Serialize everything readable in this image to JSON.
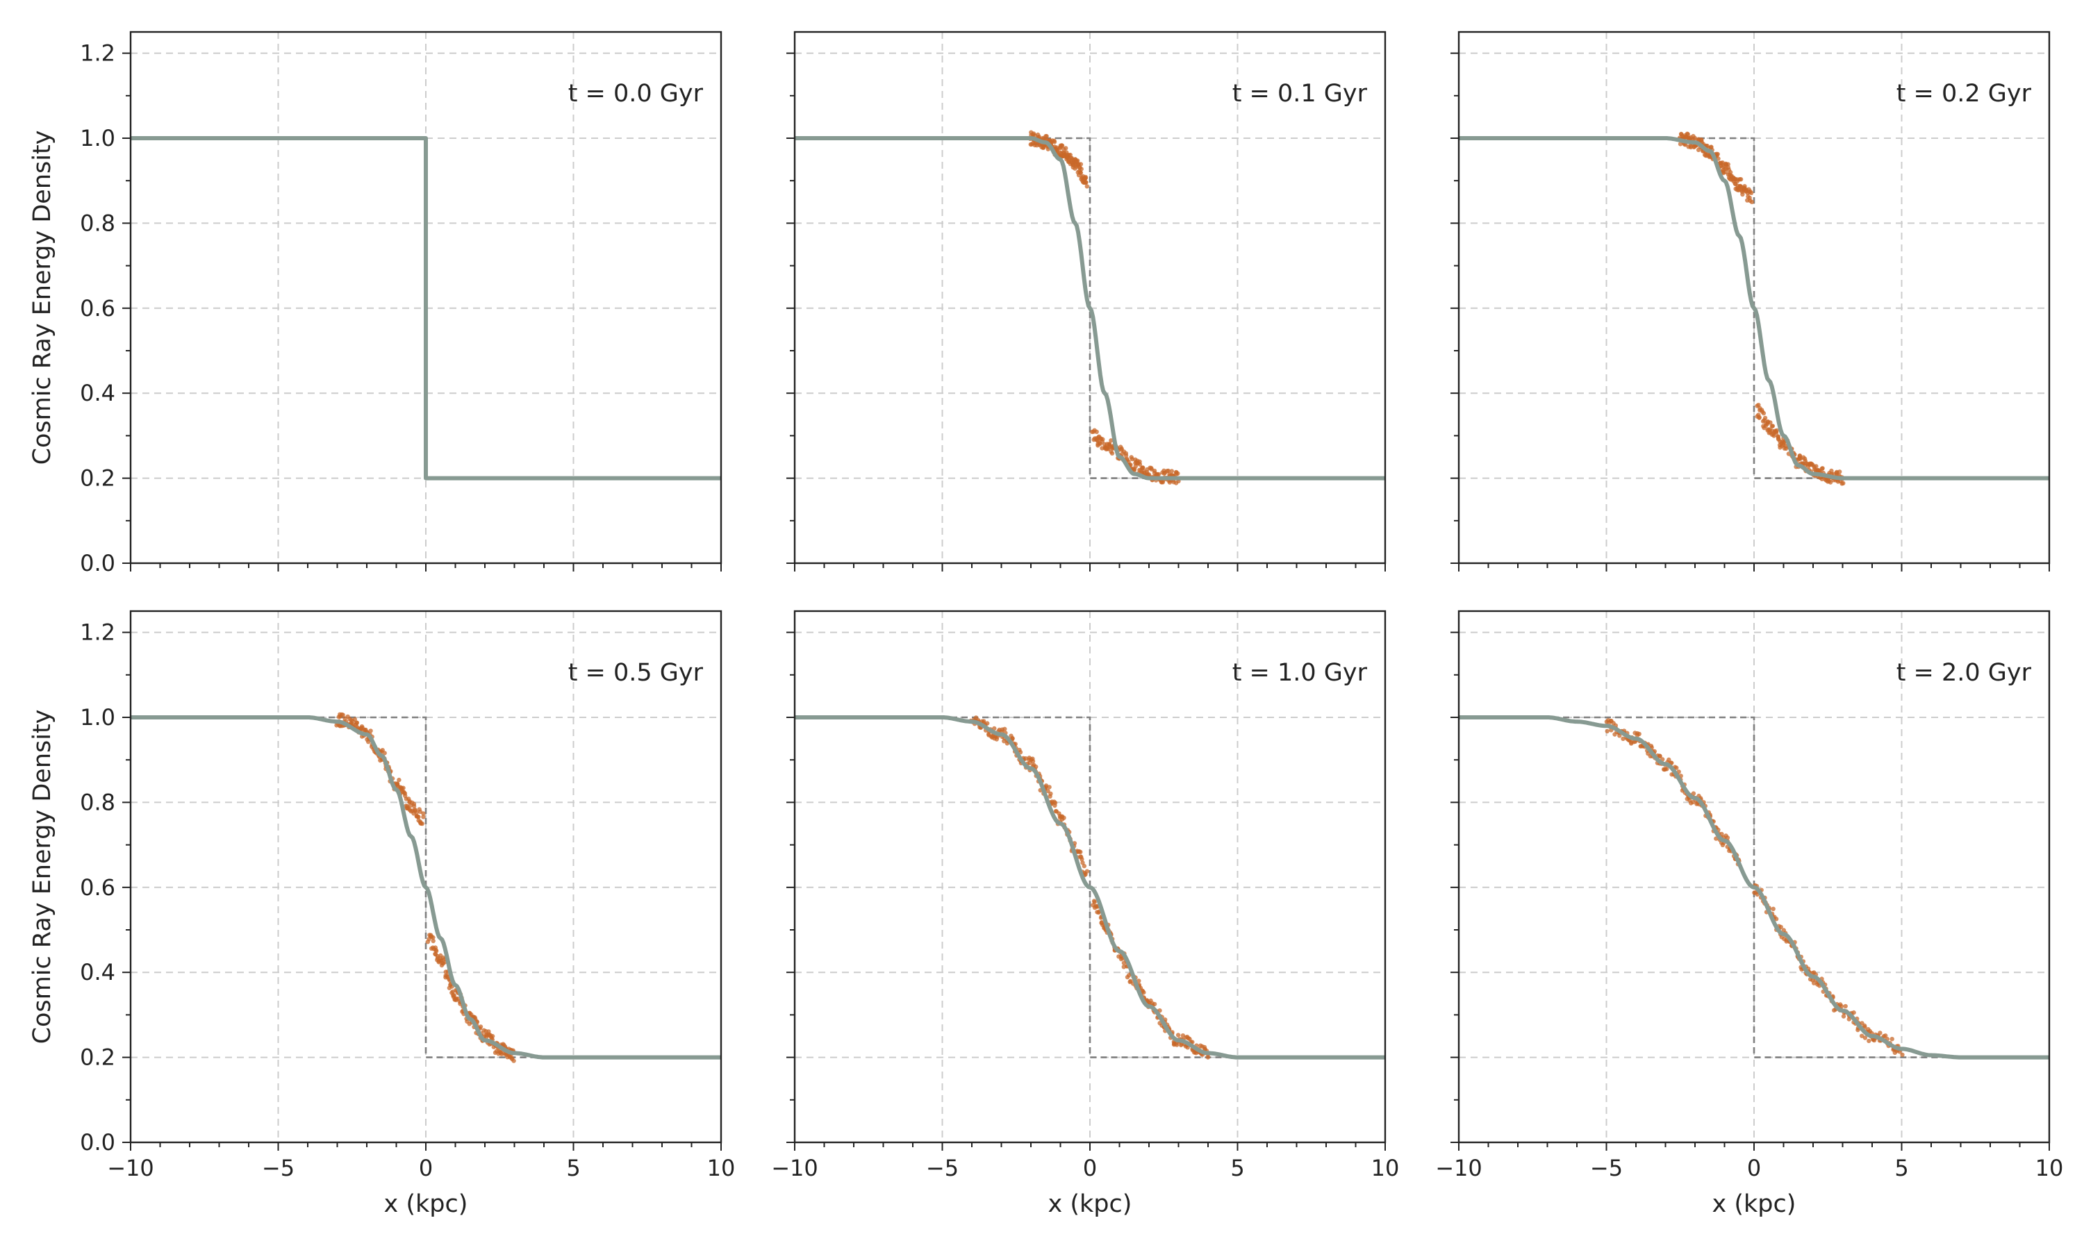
{
  "figure": {
    "x_axis_label": "x (kpc)",
    "y_axis_label": "Cosmic Ray Energy Density",
    "x_ticks": [
      -10,
      -5,
      0,
      5,
      10
    ],
    "x_tick_labels": [
      "−10",
      "−5",
      "0",
      "5",
      "10"
    ],
    "y_ticks": [
      0.0,
      0.2,
      0.4,
      0.6,
      0.8,
      1.0,
      1.2
    ],
    "y_tick_labels": [
      "0.0",
      "0.2",
      "0.4",
      "0.6",
      "0.8",
      "1.0",
      "1.2"
    ]
  },
  "colors": {
    "analytic": "#879A92",
    "initial": "#7f7f7f",
    "particles": "#C8682A",
    "grid": "#cccccc",
    "axes": "#222222"
  },
  "chart_data": [
    {
      "type": "line",
      "label": "t = 0.0 Gyr",
      "t_gyr": 0.0,
      "xlim": [
        -10,
        10
      ],
      "ylim": [
        0,
        1.25
      ],
      "grid": true,
      "series": [
        {
          "kind": "analytic",
          "x": [
            -10,
            0,
            0,
            10
          ],
          "y": [
            1.0,
            1.0,
            0.2,
            0.2
          ]
        }
      ]
    },
    {
      "type": "line",
      "label": "t = 0.1 Gyr",
      "t_gyr": 0.1,
      "xlim": [
        -10,
        10
      ],
      "ylim": [
        0,
        1.25
      ],
      "grid": true,
      "series": [
        {
          "kind": "initial",
          "x": [
            -10,
            0,
            0,
            10
          ],
          "y": [
            1.0,
            1.0,
            0.2,
            0.2
          ]
        },
        {
          "kind": "analytic",
          "x": [
            -10,
            -2,
            -1.5,
            -1,
            -0.5,
            0,
            0.5,
            1,
            1.5,
            2,
            3,
            10
          ],
          "y": [
            1.0,
            1.0,
            0.99,
            0.95,
            0.8,
            0.6,
            0.4,
            0.25,
            0.21,
            0.2,
            0.2,
            0.2
          ]
        },
        {
          "kind": "particles",
          "x": [
            -2,
            -1.5,
            -1,
            -0.5,
            -0.1,
            0.1,
            0.5,
            1,
            1.5,
            2,
            2.5,
            3
          ],
          "y": [
            1.0,
            0.99,
            0.97,
            0.94,
            0.9,
            0.3,
            0.28,
            0.26,
            0.23,
            0.21,
            0.205,
            0.2
          ]
        }
      ]
    },
    {
      "type": "line",
      "label": "t = 0.2 Gyr",
      "t_gyr": 0.2,
      "xlim": [
        -10,
        10
      ],
      "ylim": [
        0,
        1.25
      ],
      "grid": true,
      "series": [
        {
          "kind": "initial",
          "x": [
            -10,
            0,
            0,
            10
          ],
          "y": [
            1.0,
            1.0,
            0.2,
            0.2
          ]
        },
        {
          "kind": "analytic",
          "x": [
            -10,
            -3,
            -2,
            -1.5,
            -1,
            -0.5,
            0,
            0.5,
            1,
            1.5,
            2,
            3,
            10
          ],
          "y": [
            1.0,
            1.0,
            0.99,
            0.97,
            0.9,
            0.77,
            0.6,
            0.43,
            0.3,
            0.23,
            0.21,
            0.2,
            0.2
          ]
        },
        {
          "kind": "particles",
          "x": [
            -2.5,
            -2,
            -1.5,
            -1,
            -0.5,
            -0.1,
            0.1,
            0.5,
            1,
            1.5,
            2,
            2.5,
            3
          ],
          "y": [
            1.0,
            0.99,
            0.97,
            0.93,
            0.89,
            0.86,
            0.36,
            0.32,
            0.28,
            0.24,
            0.22,
            0.205,
            0.2
          ]
        }
      ]
    },
    {
      "type": "line",
      "label": "t = 0.5 Gyr",
      "t_gyr": 0.5,
      "xlim": [
        -10,
        10
      ],
      "ylim": [
        0,
        1.25
      ],
      "grid": true,
      "series": [
        {
          "kind": "initial",
          "x": [
            -10,
            0,
            0,
            10
          ],
          "y": [
            1.0,
            1.0,
            0.2,
            0.2
          ]
        },
        {
          "kind": "analytic",
          "x": [
            -10,
            -4,
            -3,
            -2,
            -1.5,
            -1,
            -0.5,
            0,
            0.5,
            1,
            1.5,
            2,
            3,
            4,
            10
          ],
          "y": [
            1.0,
            1.0,
            0.99,
            0.96,
            0.91,
            0.83,
            0.72,
            0.6,
            0.48,
            0.37,
            0.29,
            0.24,
            0.21,
            0.2,
            0.2
          ]
        },
        {
          "kind": "particles",
          "x": [
            -3,
            -2.5,
            -2,
            -1.5,
            -1,
            -0.5,
            -0.1,
            0.1,
            0.5,
            1,
            1.5,
            2,
            2.5,
            3
          ],
          "y": [
            0.995,
            0.985,
            0.96,
            0.91,
            0.84,
            0.79,
            0.76,
            0.48,
            0.43,
            0.35,
            0.29,
            0.25,
            0.22,
            0.205
          ]
        }
      ]
    },
    {
      "type": "line",
      "label": "t = 1.0 Gyr",
      "t_gyr": 1.0,
      "xlim": [
        -10,
        10
      ],
      "ylim": [
        0,
        1.25
      ],
      "grid": true,
      "series": [
        {
          "kind": "initial",
          "x": [
            -10,
            0,
            0,
            10
          ],
          "y": [
            1.0,
            1.0,
            0.2,
            0.2
          ]
        },
        {
          "kind": "analytic",
          "x": [
            -10,
            -5,
            -4,
            -3,
            -2,
            -1,
            0,
            1,
            2,
            3,
            4,
            5,
            10
          ],
          "y": [
            1.0,
            1.0,
            0.99,
            0.96,
            0.88,
            0.75,
            0.6,
            0.45,
            0.32,
            0.24,
            0.21,
            0.2,
            0.2
          ]
        },
        {
          "kind": "particles",
          "x": [
            -4,
            -3,
            -2,
            -1.5,
            -1,
            -0.5,
            -0.1,
            0.1,
            0.5,
            1,
            1.5,
            2,
            3,
            4
          ],
          "y": [
            0.99,
            0.96,
            0.89,
            0.83,
            0.76,
            0.69,
            0.63,
            0.56,
            0.51,
            0.44,
            0.38,
            0.32,
            0.24,
            0.21
          ]
        }
      ]
    },
    {
      "type": "line",
      "label": "t = 2.0 Gyr",
      "t_gyr": 2.0,
      "xlim": [
        -10,
        10
      ],
      "ylim": [
        0,
        1.25
      ],
      "grid": true,
      "series": [
        {
          "kind": "initial",
          "x": [
            -10,
            0,
            0,
            10
          ],
          "y": [
            1.0,
            1.0,
            0.2,
            0.2
          ]
        },
        {
          "kind": "analytic",
          "x": [
            -10,
            -7,
            -6,
            -5,
            -4,
            -3,
            -2,
            -1,
            0,
            1,
            2,
            3,
            4,
            5,
            6,
            7,
            10
          ],
          "y": [
            1.0,
            1.0,
            0.99,
            0.98,
            0.95,
            0.89,
            0.81,
            0.71,
            0.6,
            0.49,
            0.39,
            0.31,
            0.25,
            0.22,
            0.205,
            0.2,
            0.2
          ]
        },
        {
          "kind": "particles",
          "x": [
            -5,
            -4,
            -3,
            -2,
            -1,
            -0.5,
            0,
            0.5,
            1,
            2,
            3,
            4,
            5
          ],
          "y": [
            0.98,
            0.95,
            0.89,
            0.81,
            0.71,
            0.66,
            0.6,
            0.55,
            0.49,
            0.39,
            0.31,
            0.25,
            0.22
          ]
        }
      ]
    }
  ]
}
